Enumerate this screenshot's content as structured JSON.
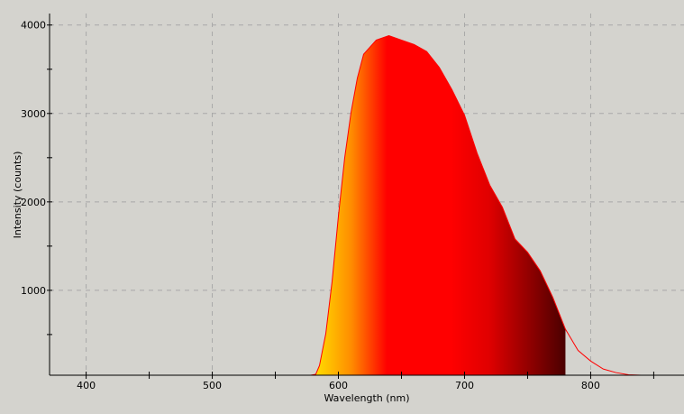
{
  "chart_data": {
    "type": "area",
    "title": "",
    "xlabel": "Wavelength (nm)",
    "ylabel": "Intensity (counts)",
    "xlim": [
      371,
      874
    ],
    "ylim": [
      40,
      4130
    ],
    "x_ticks": [
      400,
      500,
      600,
      700,
      800
    ],
    "y_ticks": [
      1000,
      2000,
      3000,
      4000
    ],
    "grid": true,
    "fill_gradient_cutoff_nm": 780,
    "colors": {
      "line": "#ff0000",
      "grid": "#a8a8a8",
      "background": "#d4d3ce",
      "gradient": [
        "#ffe800",
        "#ff8c00",
        "#ff0000",
        "#ff0000",
        "#e00000",
        "#4a0000"
      ]
    },
    "series": [
      {
        "x": [
          578,
          582,
          585,
          590,
          595,
          600,
          605,
          610,
          615,
          620,
          630,
          640,
          650,
          660,
          670,
          680,
          690,
          700,
          710,
          720,
          730,
          740,
          750,
          760,
          770,
          780,
          790,
          800,
          810,
          820,
          830,
          840,
          850,
          860
        ],
        "y": [
          0,
          50,
          150,
          510,
          1100,
          1840,
          2500,
          3010,
          3400,
          3670,
          3830,
          3880,
          3830,
          3780,
          3700,
          3520,
          3270,
          2980,
          2550,
          2190,
          1940,
          1580,
          1430,
          1220,
          920,
          560,
          320,
          200,
          110,
          70,
          45,
          30,
          20,
          10
        ]
      }
    ]
  }
}
